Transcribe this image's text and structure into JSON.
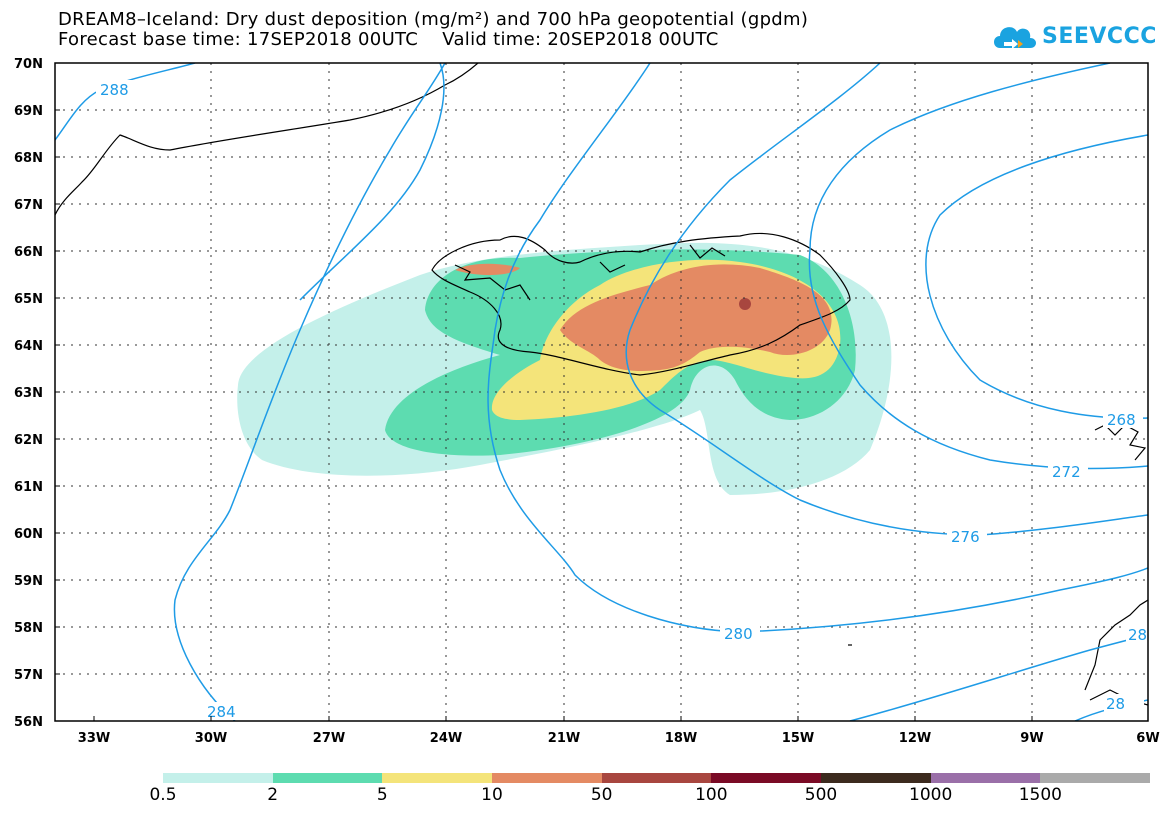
{
  "header": {
    "title_line1": "DREAM8–Iceland: Dry dust deposition (mg/m²) and 700 hPa geopotential (gpdm)",
    "title_line2": "Forecast base time: 17SEP2018 00UTC    Valid time: 20SEP2018 00UTC"
  },
  "logo": {
    "text": "SEEVCCC",
    "icon": "cloud-icon",
    "color": "#1aa3e0"
  },
  "map": {
    "lat_labels": [
      "70N",
      "69N",
      "68N",
      "67N",
      "66N",
      "65N",
      "64N",
      "63N",
      "62N",
      "61N",
      "60N",
      "59N",
      "58N",
      "57N",
      "56N"
    ],
    "lon_labels": [
      "33W",
      "30W",
      "27W",
      "24W",
      "21W",
      "18W",
      "15W",
      "12W",
      "9W",
      "6W"
    ],
    "contour_color": "#1e9be6",
    "contour_labels": [
      "288",
      "284",
      "280",
      "276",
      "272",
      "268",
      "28",
      "28"
    ]
  },
  "legend": {
    "colors": [
      "#c4f0ea",
      "#5ddcb0",
      "#f4e47a",
      "#e48a63",
      "#a8463f",
      "#7a0a25",
      "#3c2a1e",
      "#9a6fa8",
      "#aaaaaa"
    ],
    "labels": [
      "0.5",
      "2",
      "5",
      "10",
      "50",
      "100",
      "500",
      "1000",
      "1500"
    ]
  }
}
